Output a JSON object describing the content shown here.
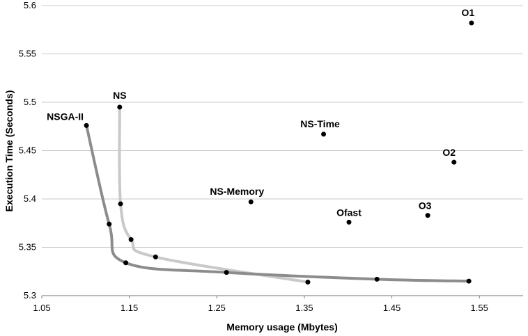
{
  "chart_data": {
    "type": "scatter",
    "xlabel": "Memory usage (Mbytes)",
    "ylabel": "Execution Time (Seconds)",
    "xlim": [
      1.05,
      1.6
    ],
    "ylim": [
      5.3,
      5.6
    ],
    "xticks": [
      "1.05",
      "1.15",
      "1.25",
      "1.35",
      "1.45",
      "1.55"
    ],
    "yticks": [
      "5.3",
      "5.35",
      "5.4",
      "5.45",
      "5.5",
      "5.55",
      "5.6"
    ],
    "grid": "horizontal",
    "curves": [
      {
        "label": "NSGA-II",
        "color": "#8c8c8c",
        "points": [
          [
            1.101,
            5.476
          ],
          [
            1.127,
            5.374
          ],
          [
            1.146,
            5.334
          ],
          [
            1.261,
            5.324
          ],
          [
            1.433,
            5.317
          ],
          [
            1.538,
            5.315
          ]
        ]
      },
      {
        "label": "NS",
        "color": "#c9c9c9",
        "points": [
          [
            1.139,
            5.495
          ],
          [
            1.14,
            5.395
          ],
          [
            1.152,
            5.358
          ],
          [
            1.18,
            5.34
          ],
          [
            1.354,
            5.314
          ]
        ]
      }
    ],
    "points": [
      {
        "label": "O1",
        "x": 1.541,
        "y": 5.582
      },
      {
        "label": "O2",
        "x": 1.521,
        "y": 5.438
      },
      {
        "label": "O3",
        "x": 1.491,
        "y": 5.383
      },
      {
        "label": "Ofast",
        "x": 1.401,
        "y": 5.376
      },
      {
        "label": "NS-Time",
        "x": 1.372,
        "y": 5.467
      },
      {
        "label": "NS-Memory",
        "x": 1.289,
        "y": 5.397
      }
    ]
  }
}
